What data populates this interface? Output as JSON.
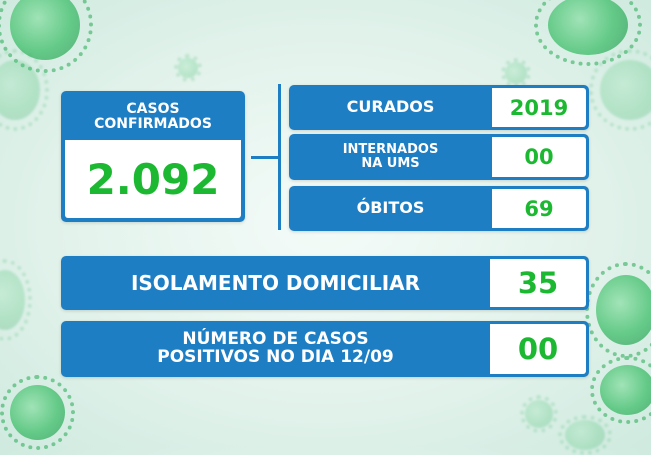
{
  "confirmados": {
    "label_line1": "CASOS",
    "label_line2": "CONFIRMADOS",
    "value": "2.092"
  },
  "curados": {
    "label": "CURADOS",
    "value": "2019"
  },
  "internados": {
    "label_line1": "INTERNADOS",
    "label_line2": "NA UMS",
    "value": "00"
  },
  "obitos": {
    "label": "ÓBITOS",
    "value": "69"
  },
  "isolamento": {
    "label": "ISOLAMENTO DOMICILIAR",
    "value": "35"
  },
  "positivos_dia": {
    "label_line1": "NÚMERO DE CASOS",
    "label_line2": "POSITIVOS NO DIA 12/09",
    "value": "00"
  },
  "colors": {
    "blue": "#1e7ec4",
    "green": "#1db832",
    "background": "#e3f3ec"
  },
  "decor": [
    "virus-icon"
  ]
}
